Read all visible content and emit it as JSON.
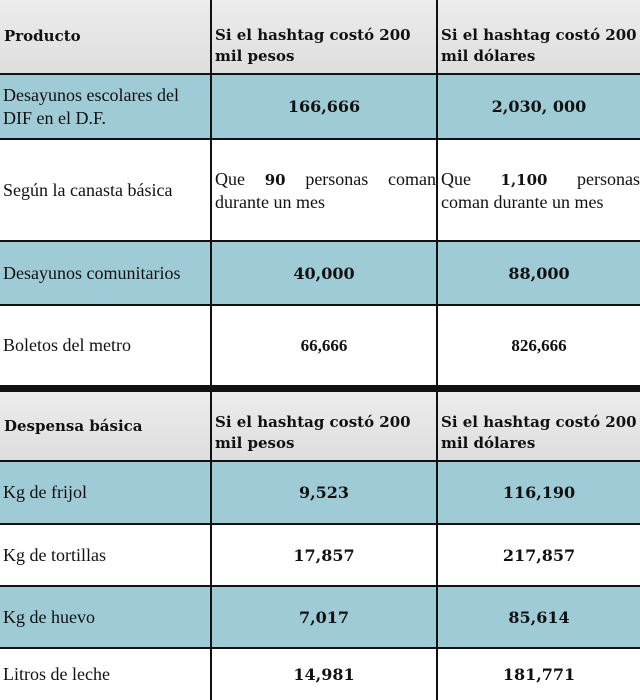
{
  "table1": {
    "headers": [
      "Producto",
      "Si el hashtag costó 200 mil pesos",
      "Si el hashtag costó 200 mil dólares"
    ],
    "rows": [
      {
        "product": "Desayunos escolares del DIF en el D.F.",
        "pesos": "166,666",
        "dolares": "2,030, 000"
      },
      {
        "product": "Según la canasta básica",
        "pesos_pre": "Que",
        "pesos_num": "90",
        "pesos_post": "personas coman durante un mes",
        "dolares_pre": "Que",
        "dolares_num": "1,100",
        "dolares_post": "personas coman durante un mes"
      },
      {
        "product": "Desayunos comunitarios",
        "pesos": "40,000",
        "dolares": "88,000"
      },
      {
        "product": "Boletos del metro",
        "pesos": "66,666",
        "dolares": "826,666"
      }
    ]
  },
  "table2": {
    "headers": [
      "Despensa básica",
      "Si el hashtag costó 200 mil pesos",
      "Si el hashtag costó 200 mil dólares"
    ],
    "rows": [
      {
        "product": "Kg de frijol",
        "pesos": "9,523",
        "dolares": "116,190"
      },
      {
        "product": "Kg de tortillas",
        "pesos": "17,857",
        "dolares": "217,857"
      },
      {
        "product": "Kg de huevo",
        "pesos": "7,017",
        "dolares": "85,614"
      },
      {
        "product": "Litros de leche",
        "pesos": "14,981",
        "dolares": "181,771"
      }
    ]
  },
  "colors": {
    "row_highlight": "#9fcbd6",
    "header": "#e4e4e4",
    "border": "#111111"
  }
}
